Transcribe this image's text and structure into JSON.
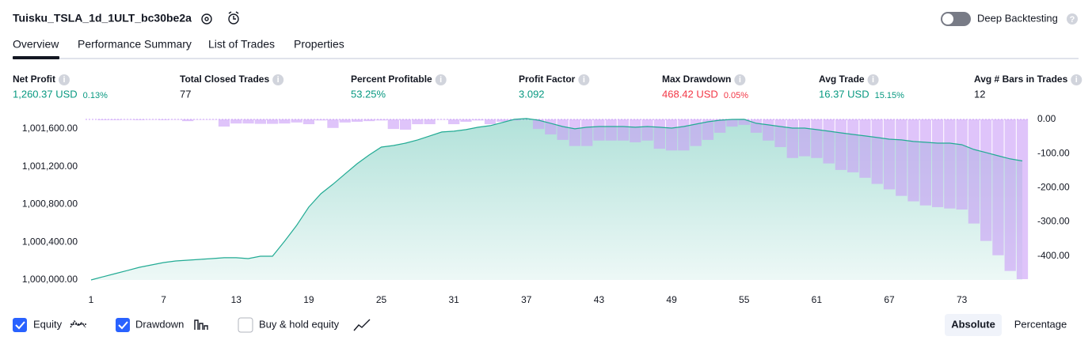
{
  "header": {
    "title": "Tuisku_TSLA_1d_1ULT_bc30be2a",
    "deep_backtesting": "Deep Backtesting"
  },
  "tabs": [
    "Overview",
    "Performance Summary",
    "List of Trades",
    "Properties"
  ],
  "metrics": [
    {
      "label": "Net Profit",
      "value": "1,260.37 USD",
      "percent": "0.13%",
      "color": "#089981"
    },
    {
      "label": "Total Closed Trades",
      "value": "77",
      "color": "#131722"
    },
    {
      "label": "Percent Profitable",
      "value": "53.25%",
      "color": "#089981"
    },
    {
      "label": "Profit Factor",
      "value": "3.092",
      "color": "#089981"
    },
    {
      "label": "Max Drawdown",
      "value": "468.42 USD",
      "percent": "0.05%",
      "color": "#f23645"
    },
    {
      "label": "Avg Trade",
      "value": "16.37 USD",
      "percent": "15.15%",
      "color": "#089981"
    },
    {
      "label": "Avg # Bars in Trades",
      "value": "12",
      "color": "#131722"
    }
  ],
  "chart_data": {
    "type": "line-bar",
    "x": [
      1,
      2,
      3,
      4,
      5,
      6,
      7,
      8,
      9,
      10,
      11,
      12,
      13,
      14,
      15,
      16,
      17,
      18,
      19,
      20,
      21,
      22,
      23,
      24,
      25,
      26,
      27,
      28,
      29,
      30,
      31,
      32,
      33,
      34,
      35,
      36,
      37,
      38,
      39,
      40,
      41,
      42,
      43,
      44,
      45,
      46,
      47,
      48,
      49,
      50,
      51,
      52,
      53,
      54,
      55,
      56,
      57,
      58,
      59,
      60,
      61,
      62,
      63,
      64,
      65,
      66,
      67,
      68,
      69,
      70,
      71,
      72,
      73,
      74,
      75,
      76,
      77,
      78
    ],
    "xlim": [
      1,
      78
    ],
    "xticks": [
      1,
      7,
      13,
      19,
      25,
      31,
      37,
      43,
      49,
      55,
      61,
      67,
      73
    ],
    "ylim": [
      1000000,
      1001700
    ],
    "yticks": [
      {
        "value": 1000000,
        "label": "1,000,000.00"
      },
      {
        "value": 1000400,
        "label": "1,000,400.00"
      },
      {
        "value": 1000800,
        "label": "1,000,800.00"
      },
      {
        "value": 1001200,
        "label": "1,001,200.00"
      },
      {
        "value": 1001600,
        "label": "1,001,600.00"
      }
    ],
    "y2lim": [
      -475,
      0
    ],
    "y2ticks": [
      {
        "value": 0,
        "label": "0.00"
      },
      {
        "value": -100,
        "label": "-100.00"
      },
      {
        "value": -200,
        "label": "-200.00"
      },
      {
        "value": -300,
        "label": "-300.00"
      },
      {
        "value": -400,
        "label": "-400.00"
      }
    ],
    "series": [
      {
        "name": "Equity",
        "color": "#22ab94",
        "values": [
          1000000,
          1000034,
          1000067,
          1000100,
          1000134,
          1000159,
          1000184,
          1000201,
          1000209,
          1000218,
          1000226,
          1000235,
          1000235,
          1000226,
          1000251,
          1000251,
          1000410,
          1000578,
          1000771,
          1000913,
          1001014,
          1001123,
          1001231,
          1001324,
          1001407,
          1001424,
          1001449,
          1001483,
          1001525,
          1001567,
          1001575,
          1001592,
          1001617,
          1001634,
          1001667,
          1001701,
          1001709,
          1001692,
          1001659,
          1001625,
          1001600,
          1001617,
          1001625,
          1001625,
          1001625,
          1001617,
          1001625,
          1001617,
          1001608,
          1001625,
          1001650,
          1001675,
          1001692,
          1001700,
          1001701,
          1001659,
          1001642,
          1001625,
          1001608,
          1001608,
          1001592,
          1001575,
          1001558,
          1001541,
          1001525,
          1001508,
          1001491,
          1001483,
          1001466,
          1001458,
          1001449,
          1001449,
          1001432,
          1001382,
          1001349,
          1001315,
          1001282,
          1001260
        ]
      },
      {
        "name": "Drawdown",
        "color": "#c99cf7",
        "axis": "y2",
        "values": [
          0,
          -2,
          -2,
          -1,
          -2,
          -1,
          -2,
          -1,
          -5,
          -1,
          -1,
          -21,
          -12,
          -12,
          -13,
          -13,
          -12,
          -9,
          -14,
          -3,
          -25,
          -9,
          -7,
          -5,
          -3,
          -28,
          -30,
          -14,
          -14,
          -1,
          -14,
          -7,
          -3,
          -14,
          -7,
          -3,
          0,
          -28,
          -44,
          -60,
          -78,
          -78,
          -62,
          -62,
          -62,
          -67,
          -62,
          -86,
          -91,
          -91,
          -78,
          -60,
          -39,
          -21,
          -16,
          -39,
          -62,
          -81,
          -113,
          -108,
          -113,
          -129,
          -148,
          -155,
          -171,
          -189,
          -205,
          -224,
          -240,
          -252,
          -257,
          -261,
          -264,
          -305,
          -356,
          -398,
          -444,
          -468
        ]
      }
    ]
  },
  "buy_hold_toggle": {
    "label": "Buy & hold equity",
    "checked": false
  },
  "modes": [
    "Absolute",
    "Percentage"
  ]
}
